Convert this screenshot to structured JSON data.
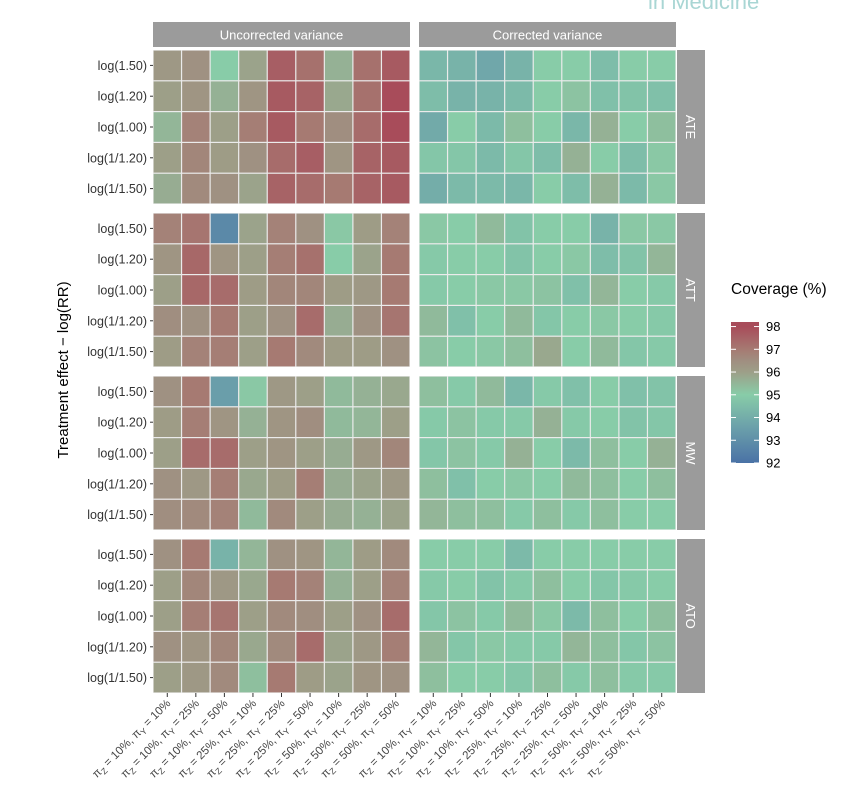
{
  "watermark": "in Medicine",
  "chart_data": {
    "type": "heatmap",
    "ylabel": "Treatment effect − log(RR)",
    "xlabel": "",
    "column_facets": [
      "Uncorrected variance",
      "Corrected variance"
    ],
    "row_facets": [
      "ATE",
      "ATT",
      "MW",
      "ATO"
    ],
    "y_categories": [
      "log(1.50)",
      "log(1.20)",
      "log(1.00)",
      "log(1/1.20)",
      "log(1/1.50)"
    ],
    "x_categories": [
      {
        "z": "10%",
        "y": "10%"
      },
      {
        "z": "10%",
        "y": "25%"
      },
      {
        "z": "10%",
        "y": "50%"
      },
      {
        "z": "25%",
        "y": "10%"
      },
      {
        "z": "25%",
        "y": "25%"
      },
      {
        "z": "25%",
        "y": "50%"
      },
      {
        "z": "50%",
        "y": "10%"
      },
      {
        "z": "50%",
        "y": "25%"
      },
      {
        "z": "50%",
        "y": "50%"
      }
    ],
    "legend": {
      "title": "Coverage (%)",
      "ticks": [
        98,
        97,
        96,
        95,
        94,
        93,
        92
      ],
      "range": [
        92,
        98.2
      ],
      "colors": {
        "92": "#4a72a6",
        "93.5": "#6a9eaa",
        "95": "#88cca8",
        "96": "#9d9f88",
        "96.5": "#a08e80",
        "97": "#a67a72",
        "98": "#a84c5a"
      },
      "placement": "right"
    },
    "values": {
      "Uncorrected variance": {
        "ATE": [
          [
            96.2,
            96.4,
            95.0,
            95.9,
            97.6,
            97.2,
            95.6,
            97.2,
            97.7
          ],
          [
            96.0,
            96.3,
            95.6,
            96.3,
            97.7,
            97.5,
            95.8,
            97.2,
            98.0
          ],
          [
            95.5,
            96.8,
            96.0,
            96.9,
            97.7,
            97.0,
            96.5,
            97.3,
            98.0
          ],
          [
            96.0,
            96.7,
            96.1,
            96.4,
            97.3,
            97.6,
            96.3,
            97.5,
            97.7
          ],
          [
            95.7,
            96.6,
            96.4,
            95.9,
            97.5,
            97.3,
            97.0,
            97.5,
            97.7
          ]
        ],
        "ATT": [
          [
            96.8,
            97.1,
            92.8,
            95.9,
            96.8,
            96.4,
            95.1,
            96.1,
            96.8
          ],
          [
            96.3,
            97.4,
            96.3,
            96.0,
            96.9,
            97.2,
            95.0,
            95.9,
            97.0
          ],
          [
            96.0,
            97.4,
            97.3,
            96.1,
            96.7,
            96.7,
            96.1,
            96.2,
            97.0
          ],
          [
            96.5,
            96.4,
            97.0,
            96.0,
            96.4,
            97.3,
            95.7,
            96.4,
            97.1
          ],
          [
            96.1,
            96.8,
            96.9,
            96.0,
            97.0,
            96.6,
            96.1,
            96.1,
            96.4
          ]
        ],
        "MW": [
          [
            96.4,
            97.0,
            93.5,
            95.1,
            96.2,
            96.0,
            95.4,
            95.6,
            95.8
          ],
          [
            96.1,
            96.9,
            96.3,
            95.6,
            96.3,
            96.5,
            95.4,
            95.5,
            96.0
          ],
          [
            96.0,
            97.3,
            97.3,
            96.0,
            96.3,
            96.0,
            95.7,
            96.2,
            96.7
          ],
          [
            96.4,
            96.2,
            96.9,
            95.8,
            96.1,
            96.9,
            95.7,
            95.9,
            96.2
          ],
          [
            96.5,
            96.6,
            96.8,
            95.4,
            96.6,
            96.0,
            95.7,
            95.6,
            95.9
          ]
        ],
        "ATO": [
          [
            96.4,
            97.0,
            94.2,
            95.5,
            96.4,
            96.3,
            95.5,
            96.1,
            96.6
          ],
          [
            96.0,
            96.7,
            96.2,
            95.8,
            97.0,
            96.8,
            95.6,
            96.0,
            96.8
          ],
          [
            96.0,
            96.9,
            97.1,
            96.0,
            96.6,
            96.5,
            96.0,
            96.4,
            97.3
          ],
          [
            96.4,
            96.3,
            96.7,
            95.8,
            96.6,
            97.3,
            95.9,
            96.2,
            96.9
          ],
          [
            96.0,
            96.2,
            96.6,
            95.3,
            97.0,
            96.1,
            95.9,
            96.3,
            96.4
          ]
        ]
      },
      "Corrected variance": {
        "ATE": [
          [
            94.3,
            94.2,
            93.8,
            94.2,
            95.0,
            95.0,
            94.5,
            95.0,
            95.0
          ],
          [
            94.5,
            94.2,
            94.2,
            94.4,
            95.0,
            95.2,
            94.6,
            94.7,
            94.6
          ],
          [
            93.9,
            95.0,
            94.4,
            95.3,
            95.0,
            94.3,
            95.6,
            95.0,
            95.3
          ],
          [
            94.8,
            94.8,
            94.4,
            94.8,
            94.5,
            95.6,
            95.0,
            94.5,
            95.1
          ],
          [
            94.0,
            94.4,
            94.4,
            94.3,
            95.0,
            94.5,
            95.6,
            94.4,
            95.1
          ]
        ],
        "ATT": [
          [
            95.1,
            95.0,
            95.4,
            94.7,
            95.0,
            95.0,
            94.2,
            95.1,
            95.1
          ],
          [
            94.9,
            95.0,
            95.0,
            94.7,
            95.0,
            95.1,
            94.5,
            94.7,
            95.5
          ],
          [
            94.9,
            95.0,
            95.1,
            95.1,
            95.2,
            94.6,
            95.5,
            95.0,
            94.9
          ],
          [
            95.4,
            94.6,
            95.0,
            95.4,
            94.8,
            95.0,
            95.1,
            95.0,
            94.9
          ],
          [
            95.2,
            95.0,
            95.1,
            95.3,
            95.8,
            95.0,
            95.4,
            94.8,
            94.9
          ]
        ],
        "MW": [
          [
            95.3,
            94.9,
            95.4,
            94.3,
            94.9,
            94.6,
            95.0,
            94.6,
            94.7
          ],
          [
            94.9,
            95.2,
            94.9,
            94.9,
            95.6,
            94.9,
            95.0,
            94.7,
            94.8
          ],
          [
            94.8,
            95.2,
            94.9,
            95.6,
            95.0,
            94.4,
            95.3,
            95.0,
            95.6
          ],
          [
            95.3,
            94.6,
            95.0,
            95.1,
            95.0,
            95.4,
            95.3,
            95.0,
            95.3
          ],
          [
            95.5,
            95.3,
            95.3,
            94.9,
            95.3,
            94.9,
            95.3,
            95.0,
            95.0
          ]
        ],
        "ATO": [
          [
            95.0,
            95.0,
            95.0,
            94.4,
            95.0,
            95.0,
            95.0,
            95.0,
            95.0
          ],
          [
            94.9,
            95.0,
            94.7,
            94.9,
            95.3,
            95.0,
            94.8,
            94.9,
            95.0
          ],
          [
            94.8,
            95.2,
            94.9,
            95.4,
            95.1,
            94.4,
            95.3,
            95.0,
            95.3
          ],
          [
            95.5,
            94.8,
            95.1,
            94.9,
            94.9,
            95.5,
            95.3,
            94.8,
            95.2
          ],
          [
            95.3,
            95.0,
            95.0,
            94.8,
            95.3,
            94.9,
            95.3,
            94.9,
            94.9
          ]
        ]
      }
    }
  }
}
